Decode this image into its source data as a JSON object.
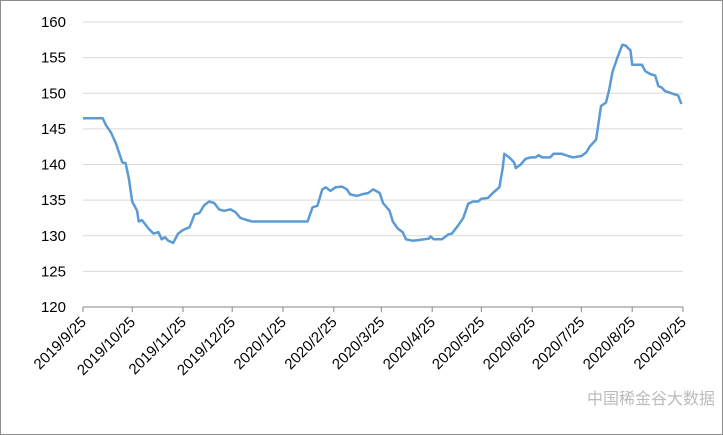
{
  "watermark": "中国稀金谷大数据",
  "chart_data": {
    "type": "line",
    "color": "#5b9bd5",
    "grid": true,
    "ylim": [
      120,
      160
    ],
    "yticks": [
      120,
      125,
      130,
      135,
      140,
      145,
      150,
      155,
      160
    ],
    "xlim": [
      "2019/9/25",
      "2020/9/25"
    ],
    "xticks": [
      "2019/9/25",
      "2019/10/25",
      "2019/11/25",
      "2019/12/25",
      "2020/1/25",
      "2020/2/25",
      "2020/3/25",
      "2020/4/25",
      "2020/5/25",
      "2020/6/25",
      "2020/7/25",
      "2020/8/25",
      "2020/9/25"
    ],
    "x": [
      "2019/9/25",
      "2019/10/7",
      "2019/10/9",
      "2019/10/12",
      "2019/10/15",
      "2019/10/19",
      "2019/10/21",
      "2019/10/23",
      "2019/10/25",
      "2019/10/28",
      "2019/10/29",
      "2019/10/31",
      "2019/11/4",
      "2019/11/7",
      "2019/11/10",
      "2019/11/12",
      "2019/11/14",
      "2019/11/16",
      "2019/11/19",
      "2019/11/22",
      "2019/11/25",
      "2019/11/29",
      "2019/12/2",
      "2019/12/5",
      "2019/12/8",
      "2019/12/11",
      "2019/12/14",
      "2019/12/17",
      "2019/12/20",
      "2019/12/24",
      "2019/12/27",
      "2019/12/30",
      "2020/1/3",
      "2020/1/6",
      "2020/2/9",
      "2020/2/12",
      "2020/2/15",
      "2020/2/18",
      "2020/2/20",
      "2020/2/23",
      "2020/2/26",
      "2020/3/1",
      "2020/3/4",
      "2020/3/6",
      "2020/3/10",
      "2020/3/13",
      "2020/3/17",
      "2020/3/20",
      "2020/3/24",
      "2020/3/26",
      "2020/3/30",
      "2020/4/1",
      "2020/4/4",
      "2020/4/7",
      "2020/4/9",
      "2020/4/13",
      "2020/4/17",
      "2020/4/20",
      "2020/4/23",
      "2020/4/24",
      "2020/4/26",
      "2020/5/1",
      "2020/5/5",
      "2020/5/7",
      "2020/5/11",
      "2020/5/14",
      "2020/5/17",
      "2020/5/20",
      "2020/5/23",
      "2020/5/25",
      "2020/5/29",
      "2020/6/1",
      "2020/6/5",
      "2020/6/7",
      "2020/6/8",
      "2020/6/11",
      "2020/6/14",
      "2020/6/15",
      "2020/6/18",
      "2020/6/21",
      "2020/6/24",
      "2020/6/27",
      "2020/6/29",
      "2020/7/1",
      "2020/7/6",
      "2020/7/8",
      "2020/7/13",
      "2020/7/17",
      "2020/7/20",
      "2020/7/25",
      "2020/7/28",
      "2020/7/30",
      "2020/8/3",
      "2020/8/6",
      "2020/8/9",
      "2020/8/11",
      "2020/8/13",
      "2020/8/16",
      "2020/8/19",
      "2020/8/21",
      "2020/8/24",
      "2020/8/25",
      "2020/8/31",
      "2020/9/2",
      "2020/9/5",
      "2020/9/8",
      "2020/9/10",
      "2020/9/12",
      "2020/9/14",
      "2020/9/18",
      "2020/9/22",
      "2020/9/24"
    ],
    "values": [
      146.5,
      146.5,
      145.5,
      144.5,
      143,
      140.3,
      140.2,
      138,
      134.8,
      133.5,
      132,
      132.2,
      131,
      130.3,
      130.5,
      129.5,
      129.8,
      129.3,
      129,
      130.3,
      130.8,
      131.2,
      133,
      133.2,
      134.3,
      134.8,
      134.6,
      133.7,
      133.5,
      133.7,
      133.3,
      132.5,
      132.2,
      132,
      132,
      134,
      134.2,
      136.5,
      136.8,
      136.3,
      136.8,
      136.9,
      136.5,
      135.8,
      135.6,
      135.8,
      136,
      136.5,
      136,
      134.6,
      133.5,
      132,
      131,
      130.5,
      129.5,
      129.3,
      129.4,
      129.5,
      129.6,
      129.9,
      129.5,
      129.5,
      130.2,
      130.3,
      131.5,
      132.5,
      134.5,
      134.8,
      134.8,
      135.2,
      135.3,
      136,
      136.8,
      139.5,
      141.5,
      141,
      140.3,
      139.5,
      140,
      140.8,
      141,
      141,
      141.3,
      141,
      141,
      141.5,
      141.5,
      141.2,
      141,
      141.2,
      141.7,
      142.5,
      143.5,
      148.2,
      148.7,
      150.5,
      153,
      155,
      156.8,
      156.7,
      156,
      154,
      154,
      153.1,
      152.7,
      152.5,
      151,
      150.8,
      150.3,
      150,
      149.7,
      148.5
    ]
  }
}
